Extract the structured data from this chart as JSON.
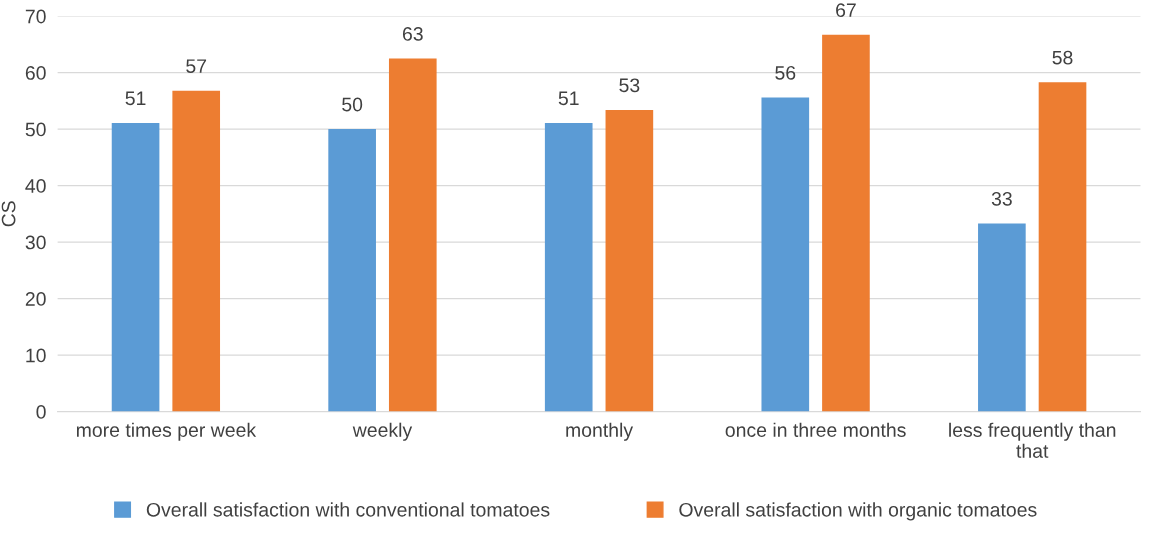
{
  "chart_data": {
    "type": "bar",
    "ylabel": "CS",
    "categories": [
      "more times per week",
      "weekly",
      "monthly",
      "once in three months",
      "less frequently than\nthat"
    ],
    "series": [
      {
        "name": "Overall satisfaction with conventional tomatoes",
        "color": "#5b9bd5",
        "values": [
          51.1,
          50.0,
          51.1,
          55.6,
          33.3
        ],
        "value_labels": [
          "51",
          "50",
          "51",
          "56",
          "33"
        ]
      },
      {
        "name": "Overall satisfaction with organic tomatoes",
        "color": "#ed7d31",
        "values": [
          56.8,
          62.5,
          53.4,
          66.7,
          58.3
        ],
        "value_labels": [
          "57",
          "63",
          "53",
          "67",
          "58"
        ]
      }
    ],
    "ylim": [
      0,
      70
    ],
    "yticks": [
      0,
      10,
      20,
      30,
      40,
      50,
      60,
      70
    ],
    "grid": "y",
    "legend": "bottom"
  }
}
